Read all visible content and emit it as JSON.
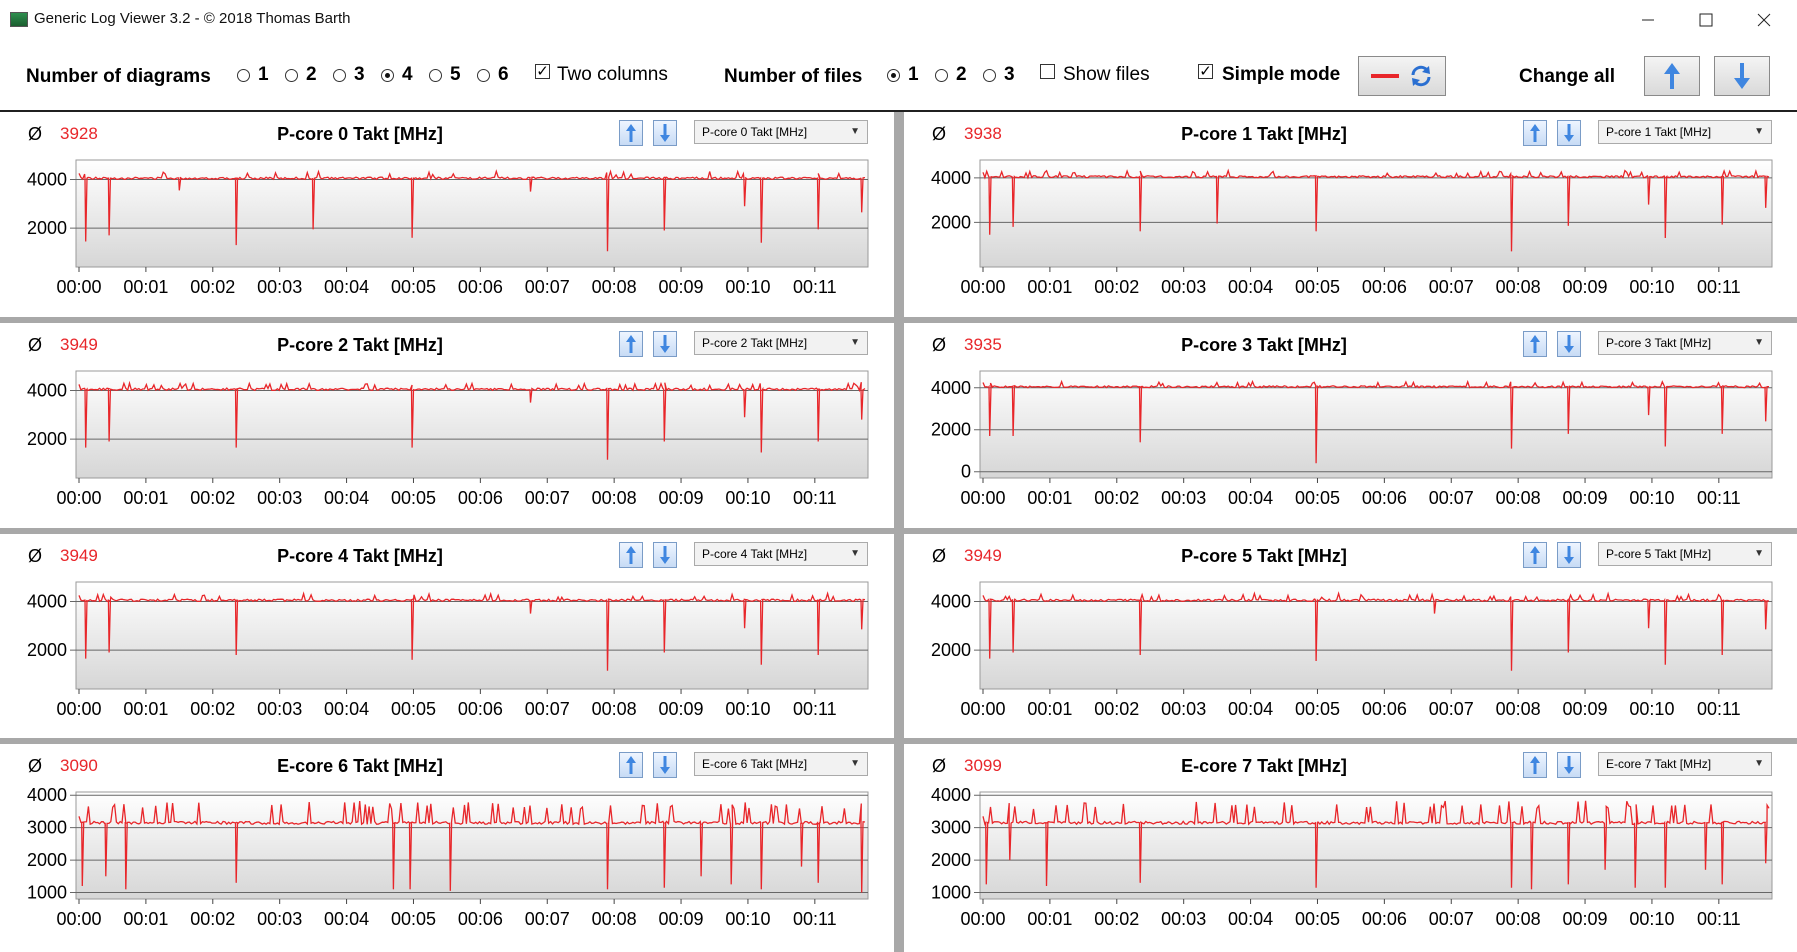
{
  "window": {
    "title": "Generic Log Viewer 3.2 - © 2018 Thomas Barth"
  },
  "toolbar": {
    "num_diagrams_label": "Number of diagrams",
    "diagram_options": [
      "1",
      "2",
      "3",
      "4",
      "5",
      "6"
    ],
    "diagram_selected": "4",
    "two_columns_label": "Two columns",
    "two_columns_checked": true,
    "num_files_label": "Number of files",
    "file_options": [
      "1",
      "2",
      "3"
    ],
    "file_selected": "1",
    "show_files_label": "Show files",
    "show_files_checked": false,
    "simple_mode_label": "Simple mode",
    "simple_mode_checked": true,
    "change_all_label": "Change all",
    "line_color": "#e8262a"
  },
  "x_ticks": [
    "00:00",
    "00:01",
    "00:02",
    "00:03",
    "00:04",
    "00:05",
    "00:06",
    "00:07",
    "00:08",
    "00:09",
    "00:10",
    "00:11"
  ],
  "panels": [
    {
      "title": "P-core 0 Takt [MHz]",
      "avg": "3928",
      "select": "P-core 0 Takt [MHz]",
      "yticks": [
        2000,
        4000
      ],
      "ymin": 400,
      "ymax": 4800,
      "base": 4050,
      "amp": 90,
      "dips": [
        [
          0.1,
          1450
        ],
        [
          0.45,
          1700
        ],
        [
          1.5,
          3550
        ],
        [
          2.35,
          1300
        ],
        [
          3.5,
          1950
        ],
        [
          4.98,
          1600
        ],
        [
          6.75,
          3500
        ],
        [
          7.9,
          1050
        ],
        [
          8.75,
          1900
        ],
        [
          9.95,
          2900
        ],
        [
          10.2,
          1400
        ],
        [
          11.05,
          1950
        ],
        [
          11.7,
          2650
        ]
      ]
    },
    {
      "title": "P-core 1 Takt [MHz]",
      "avg": "3938",
      "select": "P-core 1 Takt [MHz]",
      "yticks": [
        2000,
        4000
      ],
      "ymin": 0,
      "ymax": 4800,
      "base": 4050,
      "amp": 90,
      "dips": [
        [
          0.1,
          1450
        ],
        [
          0.45,
          1800
        ],
        [
          2.35,
          1600
        ],
        [
          3.5,
          1950
        ],
        [
          4.98,
          1600
        ],
        [
          7.9,
          700
        ],
        [
          8.75,
          1850
        ],
        [
          9.95,
          2800
        ],
        [
          10.2,
          1300
        ],
        [
          11.05,
          1900
        ],
        [
          11.7,
          2650
        ]
      ]
    },
    {
      "title": "P-core 2 Takt [MHz]",
      "avg": "3949",
      "select": "P-core 2 Takt [MHz]",
      "yticks": [
        2000,
        4000
      ],
      "ymin": 400,
      "ymax": 4800,
      "base": 4050,
      "amp": 90,
      "dips": [
        [
          0.1,
          1650
        ],
        [
          0.45,
          1900
        ],
        [
          2.35,
          1650
        ],
        [
          4.98,
          1650
        ],
        [
          6.75,
          3500
        ],
        [
          7.9,
          1150
        ],
        [
          8.75,
          1900
        ],
        [
          9.95,
          2900
        ],
        [
          10.2,
          1450
        ],
        [
          11.05,
          1900
        ],
        [
          11.7,
          2800
        ]
      ]
    },
    {
      "title": "P-core 3 Takt [MHz]",
      "avg": "3935",
      "select": "P-core 3 Takt [MHz]",
      "yticks": [
        0,
        2000,
        4000
      ],
      "ymin": -300,
      "ymax": 4800,
      "base": 4050,
      "amp": 90,
      "dips": [
        [
          0.1,
          1700
        ],
        [
          0.45,
          1700
        ],
        [
          2.35,
          1400
        ],
        [
          4.98,
          400
        ],
        [
          7.9,
          1100
        ],
        [
          8.75,
          1800
        ],
        [
          9.95,
          2700
        ],
        [
          10.2,
          1200
        ],
        [
          11.05,
          1800
        ],
        [
          11.7,
          2400
        ]
      ]
    },
    {
      "title": "P-core 4 Takt [MHz]",
      "avg": "3949",
      "select": "P-core 4 Takt [MHz]",
      "yticks": [
        2000,
        4000
      ],
      "ymin": 400,
      "ymax": 4800,
      "base": 4050,
      "amp": 90,
      "dips": [
        [
          0.1,
          1650
        ],
        [
          0.45,
          1900
        ],
        [
          2.35,
          1800
        ],
        [
          4.98,
          1600
        ],
        [
          6.75,
          3500
        ],
        [
          7.9,
          1150
        ],
        [
          8.75,
          1900
        ],
        [
          9.95,
          2900
        ],
        [
          10.2,
          1400
        ],
        [
          11.05,
          1800
        ],
        [
          11.7,
          2850
        ]
      ]
    },
    {
      "title": "P-core 5 Takt [MHz]",
      "avg": "3949",
      "select": "P-core 5 Takt [MHz]",
      "yticks": [
        2000,
        4000
      ],
      "ymin": 400,
      "ymax": 4800,
      "base": 4050,
      "amp": 90,
      "dips": [
        [
          0.1,
          1650
        ],
        [
          0.45,
          1900
        ],
        [
          2.35,
          1800
        ],
        [
          4.98,
          1550
        ],
        [
          6.75,
          3500
        ],
        [
          7.9,
          1150
        ],
        [
          8.75,
          1900
        ],
        [
          9.95,
          2900
        ],
        [
          10.2,
          1400
        ],
        [
          11.05,
          1800
        ],
        [
          11.7,
          2850
        ]
      ]
    },
    {
      "title": "E-core 6 Takt [MHz]",
      "avg": "3090",
      "select": "E-core 6 Takt [MHz]",
      "yticks": [
        1000,
        2000,
        3000,
        4000
      ],
      "ymin": 800,
      "ymax": 4100,
      "base": 3150,
      "amp": 90,
      "spiky": true,
      "dips": [
        [
          0.05,
          1200
        ],
        [
          0.4,
          1500
        ],
        [
          0.7,
          1100
        ],
        [
          2.35,
          1300
        ],
        [
          4.7,
          1100
        ],
        [
          4.95,
          1100
        ],
        [
          5.55,
          1050
        ],
        [
          7.9,
          1100
        ],
        [
          8.75,
          1150
        ],
        [
          9.3,
          1500
        ],
        [
          9.75,
          1250
        ],
        [
          10.2,
          1100
        ],
        [
          10.8,
          1800
        ],
        [
          11.05,
          1300
        ],
        [
          11.7,
          1000
        ]
      ]
    },
    {
      "title": "E-core 7 Takt [MHz]",
      "avg": "3099",
      "select": "E-core 7 Takt [MHz]",
      "yticks": [
        1000,
        2000,
        3000,
        4000
      ],
      "ymin": 800,
      "ymax": 4100,
      "base": 3150,
      "amp": 90,
      "spiky": true,
      "dips": [
        [
          0.05,
          1250
        ],
        [
          0.4,
          2000
        ],
        [
          0.95,
          1200
        ],
        [
          2.35,
          1300
        ],
        [
          4.98,
          1150
        ],
        [
          7.9,
          1150
        ],
        [
          8.2,
          1100
        ],
        [
          8.75,
          1250
        ],
        [
          9.3,
          1700
        ],
        [
          9.75,
          1150
        ],
        [
          10.2,
          1150
        ],
        [
          10.8,
          1700
        ],
        [
          11.05,
          1250
        ],
        [
          11.7,
          1900
        ]
      ]
    }
  ]
}
